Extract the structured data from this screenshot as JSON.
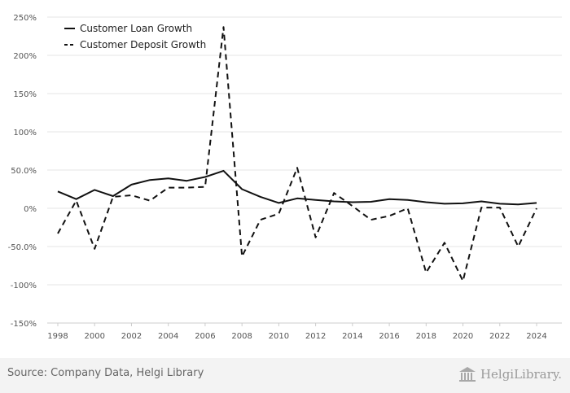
{
  "chart_data": {
    "type": "line",
    "x": [
      1998,
      1999,
      2000,
      2001,
      2002,
      2003,
      2004,
      2005,
      2006,
      2007,
      2008,
      2009,
      2010,
      2011,
      2012,
      2013,
      2014,
      2015,
      2016,
      2017,
      2018,
      2019,
      2020,
      2021,
      2022,
      2023,
      2024
    ],
    "x_ticks": [
      1998,
      2000,
      2002,
      2004,
      2006,
      2008,
      2010,
      2012,
      2014,
      2016,
      2018,
      2020,
      2022,
      2024
    ],
    "y_ticks": [
      250,
      200,
      150,
      100,
      50,
      0,
      -50,
      -100,
      -150
    ],
    "y_tick_labels": [
      "250%",
      "200%",
      "150%",
      "100%",
      "50.0%",
      "0%",
      "-50.0%",
      "-100%",
      "-150%"
    ],
    "ylim": [
      -150,
      250
    ],
    "xlim": [
      1998,
      2024
    ],
    "grid": true,
    "legend_position": "top-left",
    "series": [
      {
        "name": "Customer Loan Growth",
        "style": "solid",
        "color": "#111111",
        "values": [
          22,
          12,
          24,
          16,
          31,
          37,
          39,
          36,
          41,
          49,
          25,
          15,
          7,
          13,
          11,
          9,
          8,
          8.5,
          12,
          11,
          8,
          6,
          6.5,
          9,
          6,
          5,
          7
        ]
      },
      {
        "name": "Customer Deposit Growth",
        "style": "dashed",
        "color": "#111111",
        "values": [
          -33,
          10,
          -53,
          15,
          17,
          10,
          27,
          27,
          28,
          237,
          -63,
          -15,
          -7,
          53,
          -38,
          20,
          3,
          -15,
          -10,
          0,
          -84,
          -45,
          -95,
          1,
          1,
          -50,
          0
        ]
      }
    ]
  },
  "footer": {
    "source": "Source: Company Data, Helgi Library",
    "logo_text": "HelgiLibrary."
  }
}
